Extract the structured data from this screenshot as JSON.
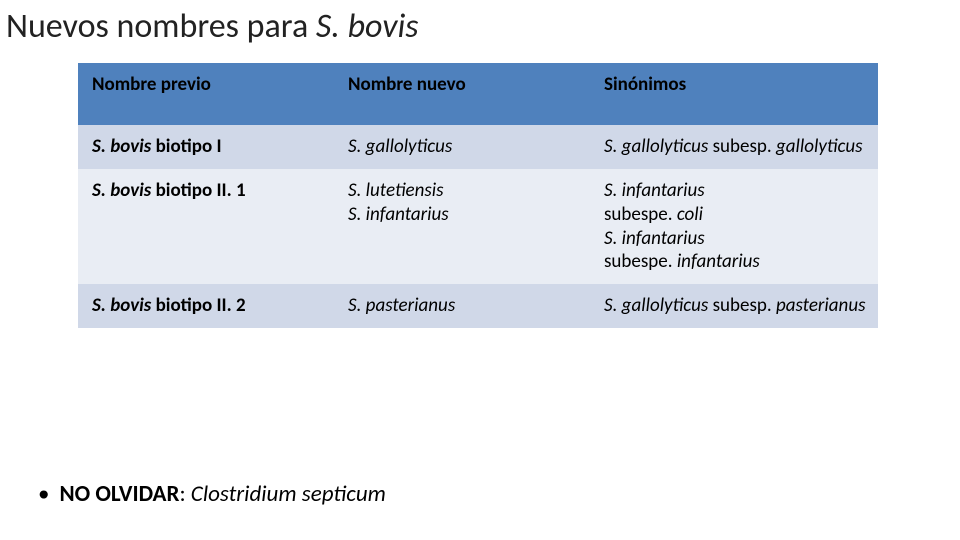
{
  "title": {
    "prefix": "Nuevos nombres para ",
    "species": "S. bovis"
  },
  "table": {
    "headers": [
      "Nombre previo",
      "Nombre nuevo",
      "Sinónimos"
    ],
    "header_bg": "#4f81bd",
    "band_colors": [
      "#d0d8e8",
      "#e9edf4"
    ],
    "rows": [
      {
        "previo_species": "S. bovis",
        "previo_rest": " biotipo I",
        "nuevo": "S. gallolyticus",
        "sinonimos_parts": [
          {
            "text": "S. gallolyticus",
            "italic": true
          },
          {
            "text": " subesp. ",
            "italic": false
          },
          {
            "text": "gallolyticus",
            "italic": true
          }
        ]
      },
      {
        "previo_species": "S. bovis",
        "previo_rest": " biotipo II. 1",
        "nuevo_multi": [
          "S. lutetiensis",
          "S. infantarius"
        ],
        "sinonimos_lines": [
          [
            {
              "text": "S. infantarius",
              "italic": true
            }
          ],
          [
            {
              "text": " subespe. ",
              "italic": false
            },
            {
              "text": "coli",
              "italic": true
            }
          ],
          [
            {
              "text": "S. infantarius",
              "italic": true
            }
          ],
          [
            {
              "text": " subespe. ",
              "italic": false
            },
            {
              "text": "infantarius",
              "italic": true
            }
          ]
        ]
      },
      {
        "previo_species": "S. bovis",
        "previo_rest": " biotipo II. 2",
        "nuevo": "S. pasterianus",
        "sinonimos_parts": [
          {
            "text": "S. gallolyticus",
            "italic": true
          },
          {
            "text": " subesp. ",
            "italic": false
          },
          {
            "text": "pasterianus",
            "italic": true
          }
        ]
      }
    ]
  },
  "bullet": {
    "label_bold": "NO OLVIDAR",
    "sep": ": ",
    "species": "Clostridium septicum"
  },
  "colors": {
    "background": "#ffffff",
    "text": "#000000"
  },
  "fonts": {
    "title_size": 34,
    "table_size": 19,
    "bullet_size": 23
  }
}
